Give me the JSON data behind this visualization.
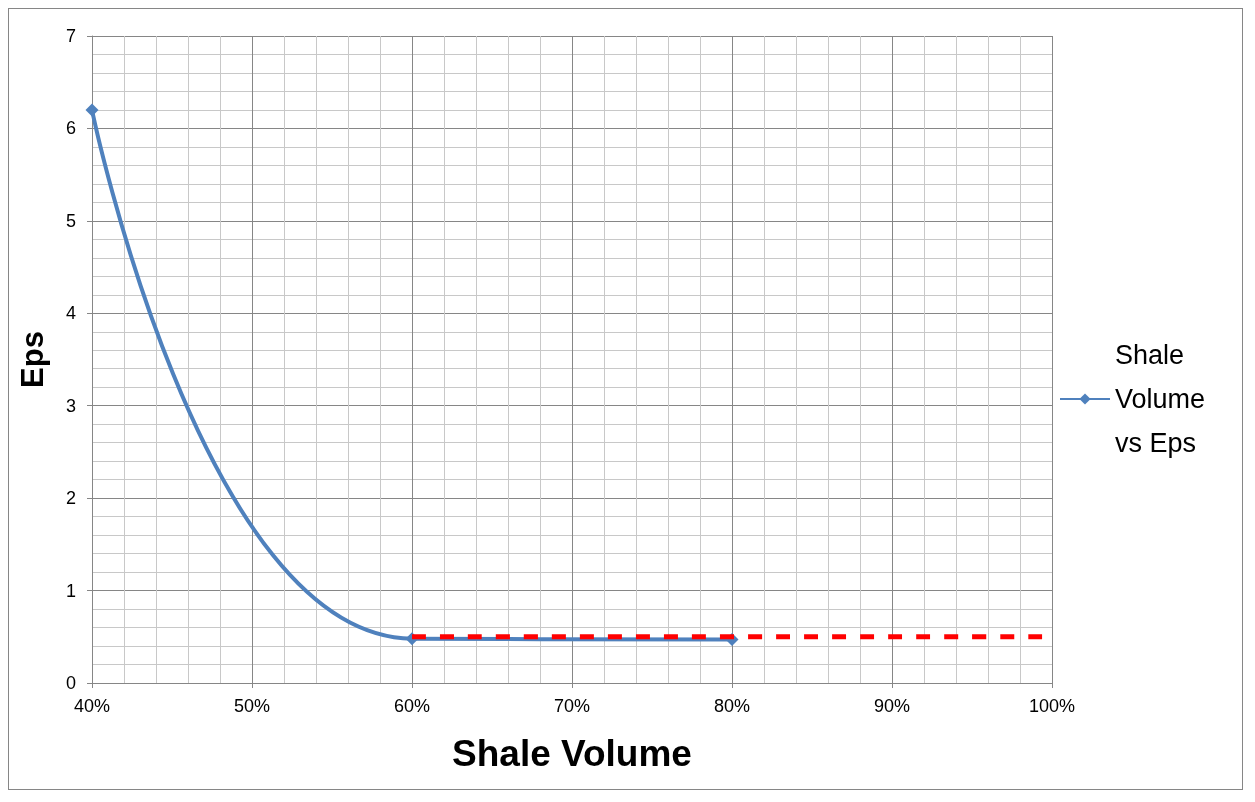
{
  "chart_data": {
    "type": "line",
    "xlabel": "Shale Volume",
    "ylabel": "Eps",
    "xlim": [
      0.4,
      1.0
    ],
    "xticks": [
      {
        "value": 0.4,
        "label": "40%"
      },
      {
        "value": 0.5,
        "label": "50%"
      },
      {
        "value": 0.6,
        "label": "60%"
      },
      {
        "value": 0.7,
        "label": "70%"
      },
      {
        "value": 0.8,
        "label": "80%"
      },
      {
        "value": 0.9,
        "label": "90%"
      },
      {
        "value": 1.0,
        "label": "100%"
      }
    ],
    "ylim": [
      0,
      7
    ],
    "yticks": [
      0,
      1,
      2,
      3,
      4,
      5,
      6,
      7
    ],
    "grid": true,
    "legend": "right",
    "series": [
      {
        "name": "Shale Volume vs Eps",
        "color": "#4f81bd",
        "x": [
          0.4,
          0.6,
          0.8
        ],
        "values": [
          6.2,
          0.48,
          0.47
        ],
        "marker": "diamond",
        "line_style": "solid"
      },
      {
        "type": "line",
        "color": "#ff0000",
        "x": [
          0.6,
          1.0
        ],
        "values": [
          0.5,
          0.5
        ],
        "marker": "none",
        "line_style": "dashed"
      }
    ]
  }
}
